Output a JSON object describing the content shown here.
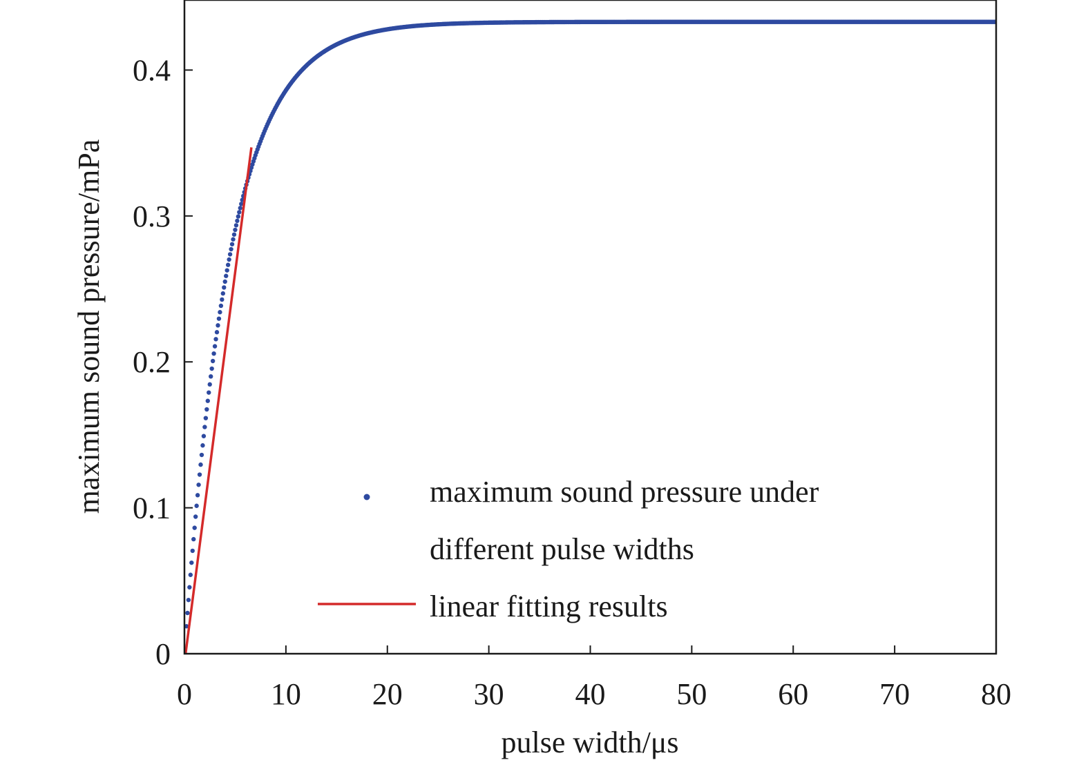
{
  "chart_data": {
    "type": "scatter",
    "title": "",
    "xlabel": "pulse width/μs",
    "ylabel": "maximum sound pressure/mPa",
    "xlim": [
      0,
      80
    ],
    "ylim": [
      0,
      0.448
    ],
    "xticks": [
      0,
      10,
      20,
      30,
      40,
      50,
      60,
      70,
      80
    ],
    "yticks": [
      0,
      0.1,
      0.2,
      0.3,
      0.4
    ],
    "xtick_labels": [
      "0",
      "10",
      "20",
      "30",
      "40",
      "50",
      "60",
      "70",
      "80"
    ],
    "ytick_labels": [
      "0",
      "0.1",
      "0.2",
      "0.3",
      "0.4"
    ],
    "grid": false,
    "legend_position": "bottom-right",
    "legend": [
      {
        "label_line1": "maximum sound pressure under",
        "label_line2": "different pulse widths",
        "marker": "dot",
        "color": "#2e4aa0"
      },
      {
        "label_line1": "linear fitting results",
        "marker": "line",
        "color": "#d42a2a"
      }
    ],
    "series": [
      {
        "name": "maximum sound pressure under different pulse widths",
        "kind": "scatter",
        "color": "#2e4aa0",
        "curve": {
          "formula": "A*(1-exp(-x/tau))",
          "A": 0.433,
          "tau": 4.5,
          "x_start": 0.2,
          "x_end": 80,
          "step": 0.1
        }
      },
      {
        "name": "linear fitting results",
        "kind": "line",
        "color": "#d42a2a",
        "x": [
          0,
          6.6
        ],
        "y": [
          -0.006,
          0.347
        ]
      }
    ]
  }
}
